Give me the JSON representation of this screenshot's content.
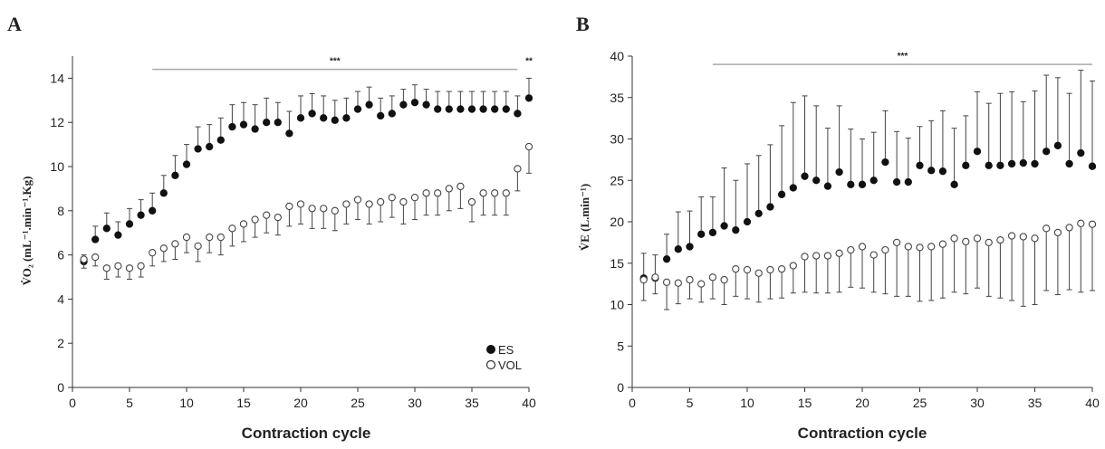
{
  "chart_data": [
    {
      "panel": "A",
      "type": "scatter",
      "xlabel": "Contraction cycle",
      "ylabel": "V̇O₂ (mL⁻¹.min⁻¹.Kg)",
      "xlim": [
        0,
        40
      ],
      "ylim": [
        0,
        15
      ],
      "xticks": [
        0,
        5,
        10,
        15,
        20,
        25,
        30,
        35,
        40
      ],
      "yticks": [
        0,
        2,
        4,
        6,
        8,
        10,
        12,
        14
      ],
      "legend": "bottom-right",
      "annotations": [
        {
          "text": "***",
          "x_from": 7,
          "x_to": 39,
          "y": 14.4
        },
        {
          "text": "**",
          "x": 40,
          "y": 14.4
        }
      ],
      "series": [
        {
          "name": "ES",
          "marker": "filled-circle",
          "x": [
            1,
            2,
            3,
            4,
            5,
            6,
            7,
            8,
            9,
            10,
            11,
            12,
            13,
            14,
            15,
            16,
            17,
            18,
            19,
            20,
            21,
            22,
            23,
            24,
            25,
            26,
            27,
            28,
            29,
            30,
            31,
            32,
            33,
            34,
            35,
            36,
            37,
            38,
            39,
            40
          ],
          "values": [
            5.7,
            6.7,
            7.2,
            6.9,
            7.4,
            7.8,
            8.0,
            8.8,
            9.6,
            10.1,
            10.8,
            10.9,
            11.2,
            11.8,
            11.9,
            11.7,
            12.0,
            12.0,
            11.5,
            12.2,
            12.4,
            12.2,
            12.1,
            12.2,
            12.6,
            12.8,
            12.3,
            12.4,
            12.8,
            12.9,
            12.8,
            12.6,
            12.6,
            12.6,
            12.6,
            12.6,
            12.6,
            12.6,
            12.4,
            13.1
          ],
          "err_up": [
            0.3,
            0.6,
            0.7,
            0.6,
            0.7,
            0.7,
            0.8,
            0.8,
            0.9,
            0.9,
            1.0,
            1.0,
            1.0,
            1.0,
            1.0,
            1.1,
            1.1,
            0.9,
            1.0,
            1.0,
            0.9,
            1.0,
            0.9,
            0.9,
            0.8,
            0.8,
            0.8,
            0.8,
            0.7,
            0.8,
            0.7,
            0.8,
            0.8,
            0.8,
            0.8,
            0.8,
            0.8,
            0.8,
            0.8,
            0.9
          ]
        },
        {
          "name": "VOL",
          "marker": "open-circle",
          "x": [
            1,
            2,
            3,
            4,
            5,
            6,
            7,
            8,
            9,
            10,
            11,
            12,
            13,
            14,
            15,
            16,
            17,
            18,
            19,
            20,
            21,
            22,
            23,
            24,
            25,
            26,
            27,
            28,
            29,
            30,
            31,
            32,
            33,
            34,
            35,
            36,
            37,
            38,
            39,
            40
          ],
          "values": [
            5.8,
            5.9,
            5.4,
            5.5,
            5.4,
            5.5,
            6.1,
            6.3,
            6.5,
            6.8,
            6.4,
            6.8,
            6.8,
            7.2,
            7.4,
            7.6,
            7.8,
            7.7,
            8.2,
            8.3,
            8.1,
            8.1,
            8.0,
            8.3,
            8.5,
            8.3,
            8.4,
            8.6,
            8.4,
            8.6,
            8.8,
            8.8,
            9.0,
            9.1,
            8.4,
            8.8,
            8.8,
            8.8,
            9.9,
            10.9
          ],
          "err_down": [
            0.4,
            0.4,
            0.5,
            0.5,
            0.5,
            0.5,
            0.6,
            0.6,
            0.7,
            0.7,
            0.7,
            0.7,
            0.8,
            0.8,
            0.8,
            0.8,
            0.8,
            0.8,
            0.9,
            0.9,
            0.9,
            0.9,
            0.9,
            0.9,
            0.9,
            0.9,
            0.9,
            0.9,
            1.0,
            1.0,
            1.0,
            1.0,
            1.0,
            1.0,
            0.9,
            1.0,
            1.0,
            1.0,
            1.0,
            1.2
          ]
        }
      ]
    },
    {
      "panel": "B",
      "type": "scatter",
      "xlabel": "Contraction cycle",
      "ylabel": "V̇E (L.min⁻¹)",
      "xlim": [
        0,
        40
      ],
      "ylim": [
        0,
        40
      ],
      "xticks": [
        0,
        5,
        10,
        15,
        20,
        25,
        30,
        35,
        40
      ],
      "yticks": [
        0,
        5,
        10,
        15,
        20,
        25,
        30,
        35,
        40
      ],
      "annotations": [
        {
          "text": "***",
          "x_from": 7,
          "x_to": 40,
          "y": 39
        }
      ],
      "series": [
        {
          "name": "ES",
          "marker": "filled-circle",
          "x": [
            1,
            2,
            3,
            4,
            5,
            6,
            7,
            8,
            9,
            10,
            11,
            12,
            13,
            14,
            15,
            16,
            17,
            18,
            19,
            20,
            21,
            22,
            23,
            24,
            25,
            26,
            27,
            28,
            29,
            30,
            31,
            32,
            33,
            34,
            35,
            36,
            37,
            38,
            39,
            40
          ],
          "values": [
            13.2,
            13.2,
            15.5,
            16.7,
            17.0,
            18.5,
            18.7,
            19.5,
            19.0,
            20.0,
            21.0,
            21.8,
            23.3,
            24.1,
            25.5,
            25.0,
            24.3,
            26.0,
            24.5,
            24.5,
            25.0,
            27.2,
            24.8,
            24.8,
            26.8,
            26.2,
            26.1,
            24.5,
            26.8,
            28.5,
            26.8,
            26.8,
            27.0,
            27.1,
            27.0,
            28.5,
            29.2,
            27.0,
            28.3,
            26.7
          ],
          "err_up": [
            3.0,
            2.8,
            3.0,
            4.5,
            4.3,
            4.5,
            4.3,
            7.0,
            6.0,
            7.0,
            7.0,
            7.5,
            8.3,
            10.3,
            9.7,
            9.0,
            7.0,
            8.0,
            6.7,
            5.5,
            5.8,
            6.2,
            6.1,
            5.3,
            4.7,
            6.0,
            7.3,
            6.8,
            6.0,
            7.2,
            7.5,
            8.7,
            8.7,
            7.4,
            8.8,
            9.2,
            8.2,
            8.5,
            10.0,
            10.3
          ]
        },
        {
          "name": "VOL",
          "marker": "open-circle",
          "x": [
            1,
            2,
            3,
            4,
            5,
            6,
            7,
            8,
            9,
            10,
            11,
            12,
            13,
            14,
            15,
            16,
            17,
            18,
            19,
            20,
            21,
            22,
            23,
            24,
            25,
            26,
            27,
            28,
            29,
            30,
            31,
            32,
            33,
            34,
            35,
            36,
            37,
            38,
            39,
            40
          ],
          "values": [
            13.0,
            13.3,
            12.7,
            12.6,
            13.0,
            12.5,
            13.3,
            13.0,
            14.3,
            14.2,
            13.8,
            14.2,
            14.3,
            14.7,
            15.8,
            15.9,
            15.9,
            16.2,
            16.6,
            17.0,
            16.0,
            16.6,
            17.5,
            17.0,
            16.9,
            17.0,
            17.3,
            18.0,
            17.6,
            18.0,
            17.5,
            17.8,
            18.3,
            18.2,
            18.0,
            19.2,
            18.7,
            19.3,
            19.8,
            19.7
          ],
          "err_down": [
            2.5,
            2.0,
            3.3,
            2.5,
            2.3,
            2.2,
            2.6,
            3.0,
            3.3,
            3.5,
            3.5,
            3.5,
            3.5,
            3.3,
            4.3,
            4.5,
            4.5,
            4.7,
            4.5,
            5.0,
            4.5,
            5.3,
            6.5,
            6.0,
            6.5,
            6.5,
            6.5,
            6.5,
            6.3,
            6.0,
            6.5,
            7.0,
            7.8,
            8.4,
            8.0,
            7.5,
            7.5,
            7.5,
            8.3,
            8.0
          ]
        }
      ]
    }
  ]
}
